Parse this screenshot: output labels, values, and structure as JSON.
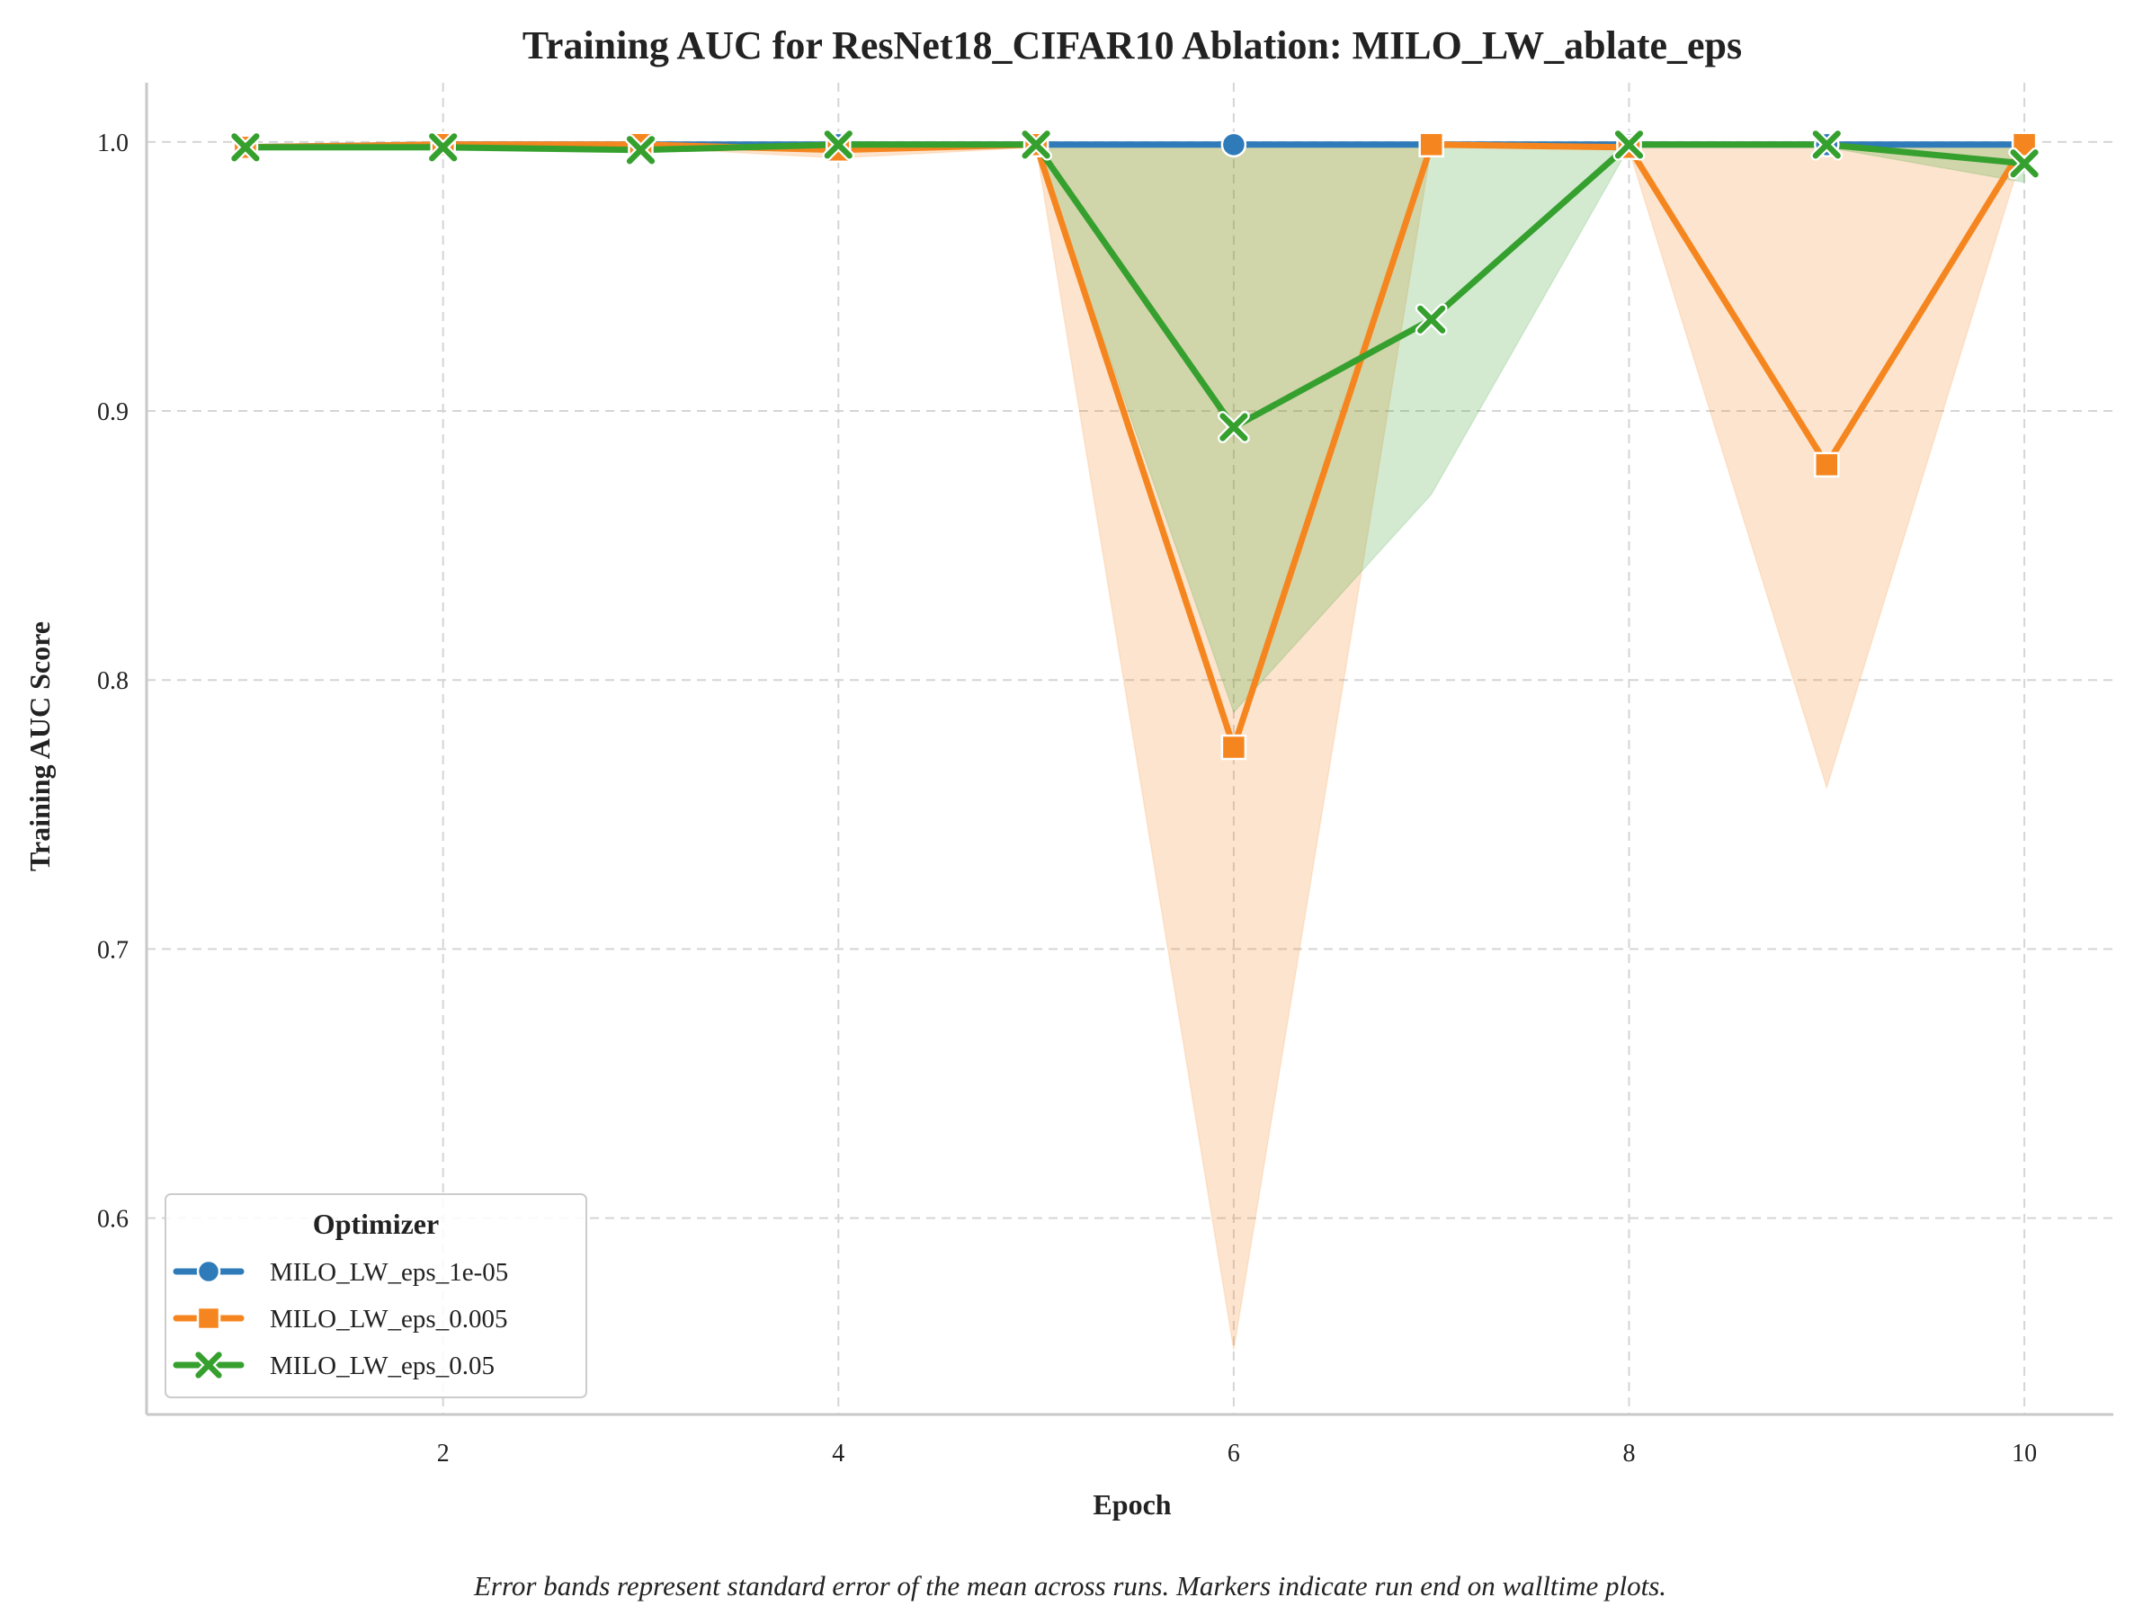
{
  "chart_data": {
    "type": "line",
    "title": "Training AUC for ResNet18_CIFAR10 Ablation: MILO_LW_ablate_eps",
    "xlabel": "Epoch",
    "ylabel": "Training AUC Score",
    "caption": "Error bands represent standard error of the mean across runs. Markers indicate run end on walltime plots.",
    "xlim": [
      0.5,
      10.45
    ],
    "ylim": [
      0.527,
      1.022
    ],
    "x_ticks": [
      2,
      4,
      6,
      8,
      10
    ],
    "x_tick_labels": [
      "2",
      "4",
      "6",
      "8",
      "10"
    ],
    "y_ticks": [
      0.6,
      0.7,
      0.8,
      0.9,
      1.0
    ],
    "y_tick_labels": [
      "0.6",
      "0.7",
      "0.8",
      "0.9",
      "1.0"
    ],
    "grid": true,
    "legend": {
      "title": "Optimizer",
      "placement": "lower-left"
    },
    "x": [
      1,
      2,
      3,
      4,
      5,
      6,
      7,
      8,
      9,
      10
    ],
    "series": [
      {
        "name": "MILO_LW_eps_1e-05",
        "color": "#2f7ab8",
        "marker": "circle",
        "values": [
          0.998,
          0.999,
          0.999,
          0.999,
          0.999,
          0.999,
          0.999,
          0.999,
          0.999,
          0.999
        ],
        "lower": [
          0.997,
          0.998,
          0.998,
          0.998,
          0.998,
          0.998,
          0.998,
          0.998,
          0.998,
          0.998
        ],
        "upper": [
          0.999,
          1.0,
          1.0,
          1.0,
          1.0,
          1.0,
          1.0,
          1.0,
          1.0,
          1.0
        ]
      },
      {
        "name": "MILO_LW_eps_0.005",
        "color": "#f5861f",
        "marker": "square",
        "values": [
          0.998,
          0.999,
          0.999,
          0.997,
          0.999,
          0.775,
          0.999,
          0.998,
          0.88,
          0.999
        ],
        "lower": [
          0.997,
          0.998,
          0.998,
          0.994,
          0.998,
          0.551,
          0.998,
          0.997,
          0.76,
          0.998
        ],
        "upper": [
          0.999,
          1.0,
          1.0,
          0.999,
          1.0,
          0.999,
          1.0,
          0.999,
          0.999,
          1.0
        ]
      },
      {
        "name": "MILO_LW_eps_0.05",
        "color": "#36a02f",
        "marker": "x",
        "values": [
          0.998,
          0.998,
          0.997,
          0.999,
          0.999,
          0.894,
          0.934,
          0.999,
          0.999,
          0.992
        ],
        "lower": [
          0.997,
          0.997,
          0.996,
          0.998,
          0.998,
          0.788,
          0.869,
          0.998,
          0.998,
          0.985
        ],
        "upper": [
          0.999,
          0.999,
          0.998,
          1.0,
          1.0,
          0.999,
          0.999,
          1.0,
          1.0,
          0.999
        ]
      }
    ]
  }
}
